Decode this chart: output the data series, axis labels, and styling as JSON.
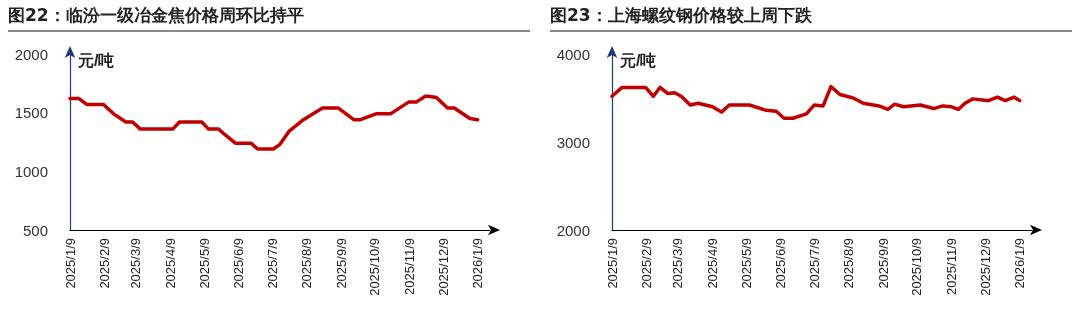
{
  "chart_data": [
    {
      "type": "line",
      "title": "图22：临汾一级冶金焦价格周环比持平",
      "ylabel": "元/吨",
      "x": [
        "2025-01-09",
        "2025-01-17",
        "2025-01-24",
        "2025-02-08",
        "2025-02-17",
        "2025-02-28",
        "2025-03-06",
        "2025-03-13",
        "2025-04-11",
        "2025-04-17",
        "2025-05-07",
        "2025-05-13",
        "2025-05-22",
        "2025-05-28",
        "2025-06-06",
        "2025-06-20",
        "2025-06-26",
        "2025-07-10",
        "2025-07-16",
        "2025-07-24",
        "2025-08-06",
        "2025-08-23",
        "2025-09-06",
        "2025-09-20",
        "2025-09-26",
        "2025-10-10",
        "2025-10-23",
        "2025-11-08",
        "2025-11-15",
        "2025-11-23",
        "2025-11-26",
        "2025-12-03",
        "2025-12-13",
        "2025-12-19",
        "2026-01-02",
        "2026-01-09"
      ],
      "series": [
        {
          "color": "#c00000",
          "values": [
            1620,
            1620,
            1570,
            1570,
            1490,
            1420,
            1420,
            1360,
            1360,
            1420,
            1420,
            1360,
            1360,
            1310,
            1240,
            1240,
            1190,
            1190,
            1230,
            1340,
            1440,
            1540,
            1540,
            1440,
            1440,
            1490,
            1490,
            1590,
            1590,
            1640,
            1640,
            1630,
            1540,
            1540,
            1450,
            1440
          ]
        }
      ],
      "xlim": [
        "2025-01-09",
        "2026-01-20"
      ],
      "xticks": [
        {
          "value": "2025-01-09",
          "label": "2025/1/9"
        },
        {
          "value": "2025-02-09",
          "label": "2025/2/9"
        },
        {
          "value": "2025-03-09",
          "label": "2025/3/9"
        },
        {
          "value": "2025-04-09",
          "label": "2025/4/9"
        },
        {
          "value": "2025-05-09",
          "label": "2025/5/9"
        },
        {
          "value": "2025-06-09",
          "label": "2025/6/9"
        },
        {
          "value": "2025-07-09",
          "label": "2025/7/9"
        },
        {
          "value": "2025-08-09",
          "label": "2025/8/9"
        },
        {
          "value": "2025-09-09",
          "label": "2025/9/9"
        },
        {
          "value": "2025-10-09",
          "label": "2025/10/9"
        },
        {
          "value": "2025-11-09",
          "label": "2025/11/9"
        },
        {
          "value": "2025-12-09",
          "label": "2025/12/9"
        },
        {
          "value": "2026-01-09",
          "label": "2026/1/9"
        }
      ],
      "ylim": [
        500,
        2000
      ],
      "yticks": [
        500,
        1000,
        1500,
        2000
      ]
    },
    {
      "type": "line",
      "title": "图23：上海螺纹钢价格较上周下跌",
      "ylabel": "元/吨",
      "x": [
        "2025-01-09",
        "2025-01-18",
        "2025-02-08",
        "2025-02-15",
        "2025-02-21",
        "2025-02-28",
        "2025-03-06",
        "2025-03-12",
        "2025-03-20",
        "2025-03-27",
        "2025-04-09",
        "2025-04-17",
        "2025-04-24",
        "2025-05-12",
        "2025-05-27",
        "2025-06-05",
        "2025-06-12",
        "2025-06-20",
        "2025-07-02",
        "2025-07-09",
        "2025-07-17",
        "2025-07-24",
        "2025-08-01",
        "2025-08-13",
        "2025-08-22",
        "2025-09-05",
        "2025-09-13",
        "2025-09-19",
        "2025-09-27",
        "2025-10-12",
        "2025-10-24",
        "2025-11-01",
        "2025-11-09",
        "2025-11-15",
        "2025-11-21",
        "2025-11-28",
        "2025-12-12",
        "2025-12-20",
        "2025-12-27",
        "2026-01-04",
        "2026-01-09"
      ],
      "series": [
        {
          "color": "#c00000",
          "values": [
            3520,
            3620,
            3620,
            3520,
            3620,
            3550,
            3560,
            3520,
            3420,
            3440,
            3400,
            3340,
            3420,
            3420,
            3360,
            3350,
            3270,
            3270,
            3320,
            3420,
            3410,
            3630,
            3540,
            3500,
            3440,
            3410,
            3370,
            3430,
            3400,
            3420,
            3380,
            3410,
            3400,
            3370,
            3440,
            3490,
            3470,
            3510,
            3470,
            3510,
            3470
          ]
        }
      ],
      "xlim": [
        "2025-01-09",
        "2026-01-20"
      ],
      "xticks": [
        {
          "value": "2025-01-09",
          "label": "2025/1/9"
        },
        {
          "value": "2025-02-09",
          "label": "2025/2/9"
        },
        {
          "value": "2025-03-09",
          "label": "2025/3/9"
        },
        {
          "value": "2025-04-09",
          "label": "2025/4/9"
        },
        {
          "value": "2025-05-09",
          "label": "2025/5/9"
        },
        {
          "value": "2025-06-09",
          "label": "2025/6/9"
        },
        {
          "value": "2025-07-09",
          "label": "2025/7/9"
        },
        {
          "value": "2025-08-09",
          "label": "2025/8/9"
        },
        {
          "value": "2025-09-09",
          "label": "2025/9/9"
        },
        {
          "value": "2025-10-09",
          "label": "2025/10/9"
        },
        {
          "value": "2025-11-09",
          "label": "2025/11/9"
        },
        {
          "value": "2025-12-09",
          "label": "2025/12/9"
        },
        {
          "value": "2026-01-09",
          "label": "2026/1/9"
        }
      ],
      "ylim": [
        2000,
        4000
      ],
      "yticks": [
        2000,
        3000,
        4000
      ]
    }
  ]
}
